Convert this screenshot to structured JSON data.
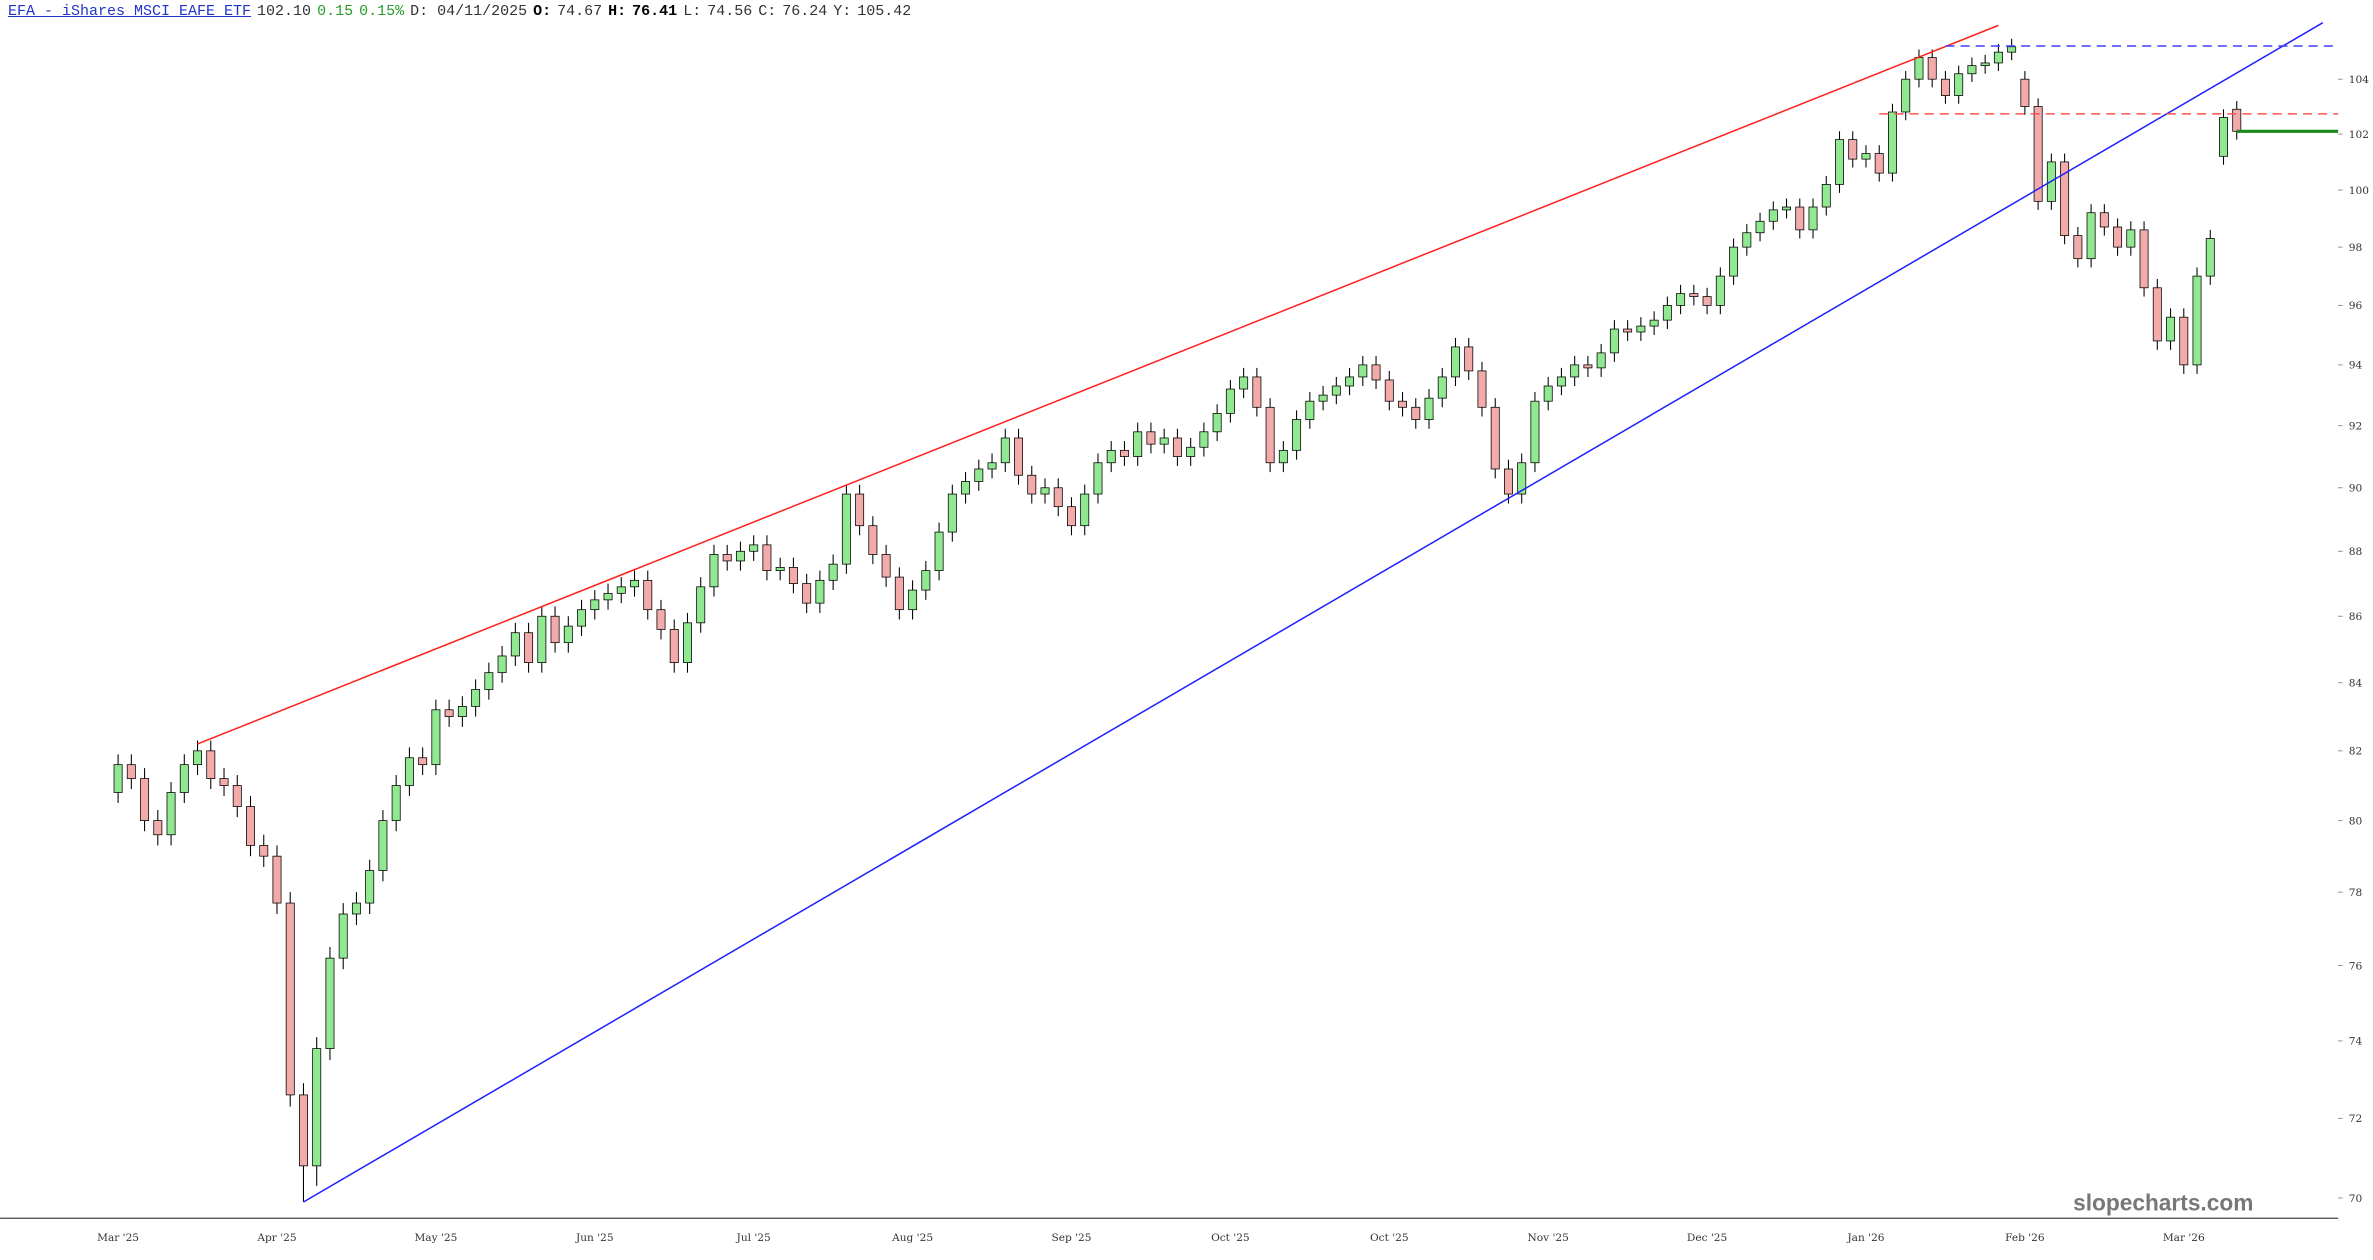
{
  "header": {
    "symbol_title": "EFA - iShares MSCI EAFE ETF",
    "last": "102.10",
    "change": "0.15",
    "change_pct": "0.15%",
    "date": "D: 04/11/2025",
    "open_label": "O:",
    "open": "74.67",
    "high_label": "H:",
    "high": "76.41",
    "low_label": "L:",
    "low": "74.56",
    "close_label": "C:",
    "close": "76.24",
    "prev_label": "Y:",
    "prev": "105.42"
  },
  "watermark": "slopecharts.com",
  "chart_data": {
    "type": "candlestick",
    "log": true,
    "up_color": "#90e890",
    "down_color": "#f2aaaa",
    "ylim": [
      69.5,
      106.1
    ],
    "yticks": [
      70,
      72,
      74,
      76,
      78,
      80,
      82,
      84,
      86,
      88,
      90,
      92,
      94,
      96,
      98,
      100,
      102,
      104
    ],
    "categories": [
      "Mar '25",
      null,
      null,
      null,
      null,
      null,
      null,
      null,
      null,
      null,
      null,
      null,
      "Apr '25",
      null,
      null,
      null,
      null,
      null,
      null,
      null,
      null,
      null,
      null,
      null,
      "May '25",
      null,
      null,
      null,
      null,
      null,
      null,
      null,
      null,
      null,
      null,
      null,
      "Jun '25",
      null,
      null,
      null,
      null,
      null,
      null,
      null,
      null,
      null,
      null,
      null,
      "Jul '25",
      null,
      null,
      null,
      null,
      null,
      null,
      null,
      null,
      null,
      null,
      null,
      "Aug '25",
      null,
      null,
      null,
      null,
      null,
      null,
      null,
      null,
      null,
      null,
      null,
      "Sep '25",
      null,
      null,
      null,
      null,
      null,
      null,
      null,
      null,
      null,
      null,
      null,
      "Oct '25",
      null,
      null,
      null,
      null,
      null,
      null,
      null,
      null,
      null,
      null,
      null,
      "Oct '25",
      null,
      null,
      null,
      null,
      null,
      null,
      null,
      null,
      null,
      null,
      null,
      "Nov '25",
      null,
      null,
      null,
      null,
      null,
      null,
      null,
      null,
      null,
      null,
      null,
      "Dec '25",
      null,
      null,
      null,
      null,
      null,
      null,
      null,
      null,
      null,
      null,
      null,
      "Jan '26",
      null,
      null,
      null,
      null,
      null,
      null,
      null,
      null,
      null,
      null,
      null,
      "Feb '26",
      null,
      null,
      null,
      null,
      null,
      null,
      null,
      null,
      null,
      null,
      null,
      "Mar '26",
      null,
      null,
      null,
      null
    ],
    "open": [
      80.8,
      81.6,
      81.2,
      80.0,
      79.6,
      80.8,
      81.6,
      82.0,
      81.2,
      81.0,
      80.4,
      79.3,
      79.0,
      77.7,
      72.6,
      70.8,
      73.8,
      76.2,
      77.4,
      77.7,
      78.6,
      80.0,
      81.0,
      81.8,
      81.6,
      83.2,
      83.0,
      83.3,
      83.8,
      84.3,
      84.8,
      85.5,
      84.6,
      86.0,
      85.2,
      85.7,
      86.2,
      86.5,
      86.7,
      86.9,
      87.1,
      86.2,
      85.6,
      84.6,
      85.8,
      86.9,
      87.9,
      87.7,
      88.0,
      88.2,
      87.4,
      87.5,
      87.0,
      86.4,
      87.1,
      87.6,
      89.8,
      88.8,
      87.9,
      87.2,
      86.2,
      86.8,
      87.4,
      88.6,
      89.8,
      90.2,
      90.6,
      90.8,
      91.6,
      90.4,
      89.8,
      90.0,
      89.4,
      88.8,
      89.8,
      90.8,
      91.2,
      91.0,
      91.8,
      91.4,
      91.6,
      91.0,
      91.3,
      91.8,
      92.4,
      93.2,
      93.6,
      92.6,
      90.8,
      91.2,
      92.2,
      92.8,
      93.0,
      93.3,
      93.6,
      94.0,
      93.5,
      92.8,
      92.6,
      92.2,
      92.9,
      93.6,
      94.6,
      93.8,
      92.6,
      90.6,
      89.8,
      90.8,
      92.8,
      93.3,
      93.6,
      94.0,
      93.9,
      94.4,
      95.2,
      95.1,
      95.3,
      95.5,
      96.0,
      96.4,
      96.3,
      96.0,
      97.0,
      98.0,
      98.5,
      98.9,
      99.3,
      99.4,
      98.6,
      99.4,
      100.2,
      101.8,
      101.1,
      101.3,
      100.6,
      102.8,
      104.0,
      104.8,
      104.0,
      103.4,
      104.2,
      104.5,
      104.6,
      105.0,
      104.0,
      103.0,
      99.6,
      101.0,
      98.4,
      97.6,
      99.2,
      98.7,
      98.0,
      98.6,
      96.6,
      94.8,
      95.6,
      94.0,
      97.0,
      101.2,
      102.9
    ],
    "high": [
      81.9,
      81.9,
      81.5,
      80.3,
      81.1,
      81.9,
      82.3,
      82.3,
      81.5,
      81.3,
      80.7,
      79.6,
      79.3,
      78.0,
      72.9,
      74.1,
      76.5,
      77.7,
      78.0,
      78.9,
      80.3,
      81.3,
      82.1,
      82.1,
      83.5,
      83.5,
      83.6,
      84.1,
      84.6,
      85.1,
      85.8,
      85.8,
      86.3,
      86.3,
      86.0,
      86.5,
      86.8,
      87.0,
      87.2,
      87.4,
      87.4,
      86.5,
      85.9,
      86.1,
      87.2,
      88.2,
      88.2,
      88.3,
      88.5,
      88.5,
      87.8,
      87.8,
      87.3,
      87.4,
      87.9,
      90.1,
      90.1,
      89.1,
      88.2,
      87.5,
      87.1,
      87.7,
      88.9,
      90.1,
      90.5,
      90.9,
      91.1,
      91.9,
      91.9,
      90.7,
      90.3,
      90.3,
      89.7,
      90.1,
      91.1,
      91.5,
      91.5,
      92.1,
      92.1,
      91.9,
      91.9,
      91.6,
      92.1,
      92.7,
      93.5,
      93.9,
      93.9,
      92.9,
      91.5,
      92.5,
      93.1,
      93.3,
      93.6,
      93.9,
      94.3,
      94.3,
      93.8,
      93.1,
      92.9,
      93.2,
      93.9,
      94.9,
      94.9,
      94.1,
      92.9,
      90.9,
      91.1,
      93.1,
      93.6,
      93.9,
      94.3,
      94.3,
      94.7,
      95.5,
      95.5,
      95.6,
      95.8,
      96.3,
      96.7,
      96.7,
      96.6,
      97.3,
      98.3,
      98.8,
      99.2,
      99.6,
      99.7,
      99.7,
      99.7,
      100.5,
      102.1,
      102.1,
      101.6,
      101.6,
      103.1,
      104.3,
      105.1,
      105.1,
      104.3,
      104.5,
      104.8,
      104.9,
      105.3,
      105.5,
      104.3,
      103.3,
      101.3,
      101.3,
      98.7,
      99.5,
      99.5,
      99.0,
      98.9,
      98.9,
      96.9,
      95.9,
      95.9,
      97.3,
      98.6,
      102.9,
      103.2
    ],
    "low": [
      80.5,
      80.9,
      79.7,
      79.3,
      79.3,
      80.5,
      81.3,
      80.9,
      80.7,
      80.1,
      79.0,
      78.7,
      77.4,
      72.3,
      69.9,
      70.3,
      73.5,
      75.9,
      77.1,
      77.4,
      78.3,
      79.7,
      80.7,
      81.3,
      81.3,
      82.7,
      82.7,
      83.0,
      83.5,
      84.0,
      84.5,
      84.3,
      84.3,
      84.9,
      84.9,
      85.4,
      85.9,
      86.2,
      86.4,
      86.6,
      85.9,
      85.3,
      84.3,
      84.3,
      85.5,
      86.6,
      87.4,
      87.4,
      87.7,
      87.1,
      87.1,
      86.7,
      86.1,
      86.1,
      86.8,
      87.3,
      88.5,
      87.6,
      86.9,
      85.9,
      85.9,
      86.5,
      87.1,
      88.3,
      89.5,
      89.9,
      90.3,
      90.5,
      90.1,
      89.5,
      89.5,
      89.1,
      88.5,
      88.5,
      89.5,
      90.5,
      90.7,
      90.7,
      91.1,
      91.1,
      90.7,
      90.7,
      91.0,
      91.5,
      92.1,
      92.9,
      92.3,
      90.5,
      90.5,
      90.9,
      91.9,
      92.5,
      92.7,
      93.0,
      93.3,
      93.2,
      92.5,
      92.3,
      91.9,
      91.9,
      92.6,
      93.3,
      93.5,
      92.3,
      90.3,
      89.5,
      89.5,
      90.5,
      92.5,
      93.0,
      93.3,
      93.6,
      93.6,
      94.1,
      94.8,
      94.8,
      95.0,
      95.2,
      95.7,
      96.0,
      95.7,
      95.7,
      96.7,
      97.7,
      98.2,
      98.6,
      99.0,
      98.3,
      98.3,
      99.1,
      99.9,
      100.8,
      100.8,
      100.3,
      100.3,
      102.5,
      103.7,
      103.7,
      103.1,
      103.1,
      103.9,
      104.2,
      104.3,
      104.7,
      102.7,
      99.3,
      99.3,
      98.1,
      97.3,
      97.3,
      98.4,
      97.7,
      97.7,
      96.3,
      94.5,
      94.5,
      93.7,
      93.7,
      96.7,
      100.9,
      101.8
    ],
    "close": [
      81.6,
      81.2,
      80.0,
      79.6,
      80.8,
      81.6,
      82.0,
      81.2,
      81.0,
      80.4,
      79.3,
      79.0,
      77.7,
      72.6,
      70.8,
      73.8,
      76.2,
      77.4,
      77.7,
      78.6,
      80.0,
      81.0,
      81.8,
      81.6,
      83.2,
      83.0,
      83.3,
      83.8,
      84.3,
      84.8,
      85.5,
      84.6,
      86.0,
      85.2,
      85.7,
      86.2,
      86.5,
      86.7,
      86.9,
      87.1,
      86.2,
      85.6,
      84.6,
      85.8,
      86.9,
      87.9,
      87.7,
      88.0,
      88.2,
      87.4,
      87.5,
      87.0,
      86.4,
      87.1,
      87.6,
      89.8,
      88.8,
      87.9,
      87.2,
      86.2,
      86.8,
      87.4,
      88.6,
      89.8,
      90.2,
      90.6,
      90.8,
      91.6,
      90.4,
      89.8,
      90.0,
      89.4,
      88.8,
      89.8,
      90.8,
      91.2,
      91.0,
      91.8,
      91.4,
      91.6,
      91.0,
      91.3,
      91.8,
      92.4,
      93.2,
      93.6,
      92.6,
      90.8,
      91.2,
      92.2,
      92.8,
      93.0,
      93.3,
      93.6,
      94.0,
      93.5,
      92.8,
      92.6,
      92.2,
      92.9,
      93.6,
      94.6,
      93.8,
      92.6,
      90.6,
      89.8,
      90.8,
      92.8,
      93.3,
      93.6,
      94.0,
      93.9,
      94.4,
      95.2,
      95.1,
      95.3,
      95.5,
      96.0,
      96.4,
      96.3,
      96.0,
      97.0,
      98.0,
      98.5,
      98.9,
      99.3,
      99.4,
      98.6,
      99.4,
      100.2,
      101.8,
      101.1,
      101.3,
      100.6,
      102.8,
      104.0,
      104.8,
      104.0,
      103.4,
      104.2,
      104.5,
      104.6,
      105.0,
      105.2,
      103.0,
      99.6,
      101.0,
      98.4,
      97.6,
      99.2,
      98.7,
      98.0,
      98.6,
      96.6,
      94.8,
      95.6,
      94.0,
      97.0,
      98.3,
      102.6,
      102.1
    ],
    "trendlines": [
      {
        "color": "#ff2020",
        "start": [
          6,
          82.2
        ],
        "end": [
          142,
          106.0
        ]
      },
      {
        "color": "#2020ff",
        "start": [
          14,
          69.9
        ],
        "end": [
          166.5,
          106.1
        ]
      }
    ],
    "levels": [
      {
        "value": 105.23,
        "from": 138,
        "color": "#4040ff",
        "dashed": true
      },
      {
        "value": 102.73,
        "from": 133,
        "color": "#ff5050",
        "dashed": true
      },
      {
        "value": 102.1,
        "from": 160,
        "color": "#1a8a1a",
        "dashed": false
      }
    ]
  }
}
